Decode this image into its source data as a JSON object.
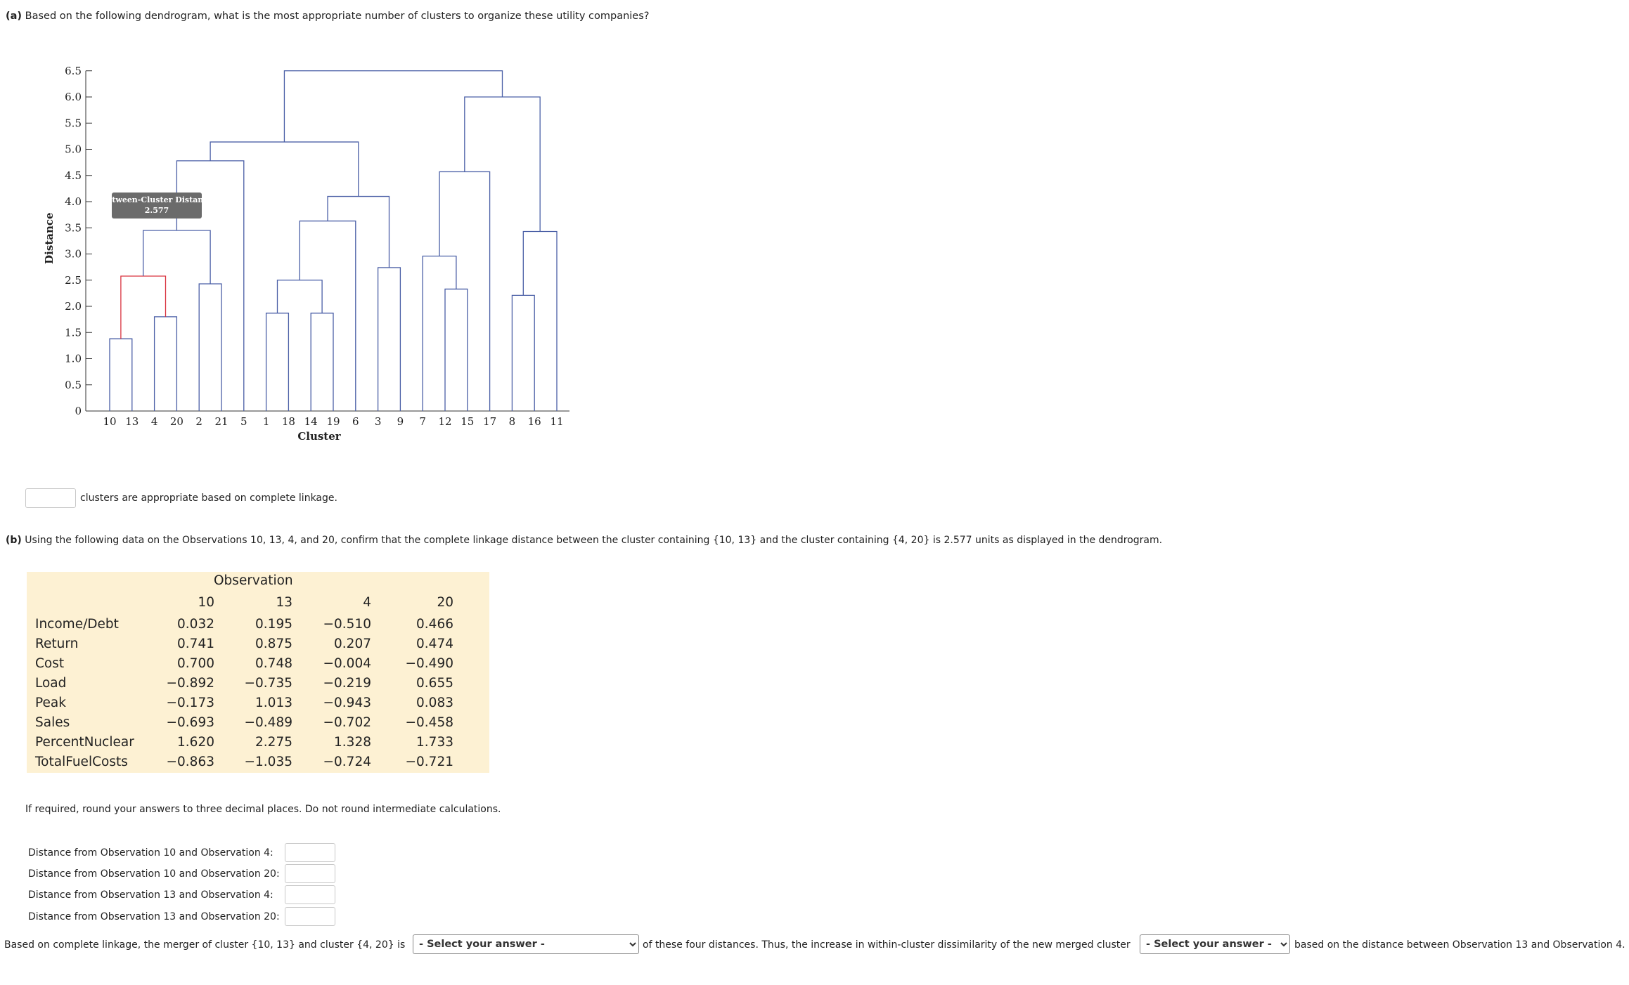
{
  "part_a": {
    "label": "(a)",
    "question": "Based on the following dendrogram, what is the most appropriate number of clusters to organize these utility companies?",
    "answer_suffix": "clusters are appropriate based on complete linkage."
  },
  "dendrogram": {
    "ylabel": "Distance",
    "xlabel": "Cluster",
    "y_ticks": [
      "0",
      "0.5",
      "1.0",
      "1.5",
      "2.0",
      "2.5",
      "3.0",
      "3.5",
      "4.0",
      "4.5",
      "5.0",
      "5.5",
      "6.0",
      "6.5"
    ],
    "leaf_order": [
      "10",
      "13",
      "4",
      "20",
      "2",
      "21",
      "5",
      "1",
      "18",
      "14",
      "19",
      "6",
      "3",
      "9",
      "7",
      "12",
      "15",
      "17",
      "8",
      "16",
      "11"
    ],
    "callout_title": "Between-Cluster Distance",
    "callout_value": "2.577",
    "line_color": "#4a5fa6",
    "highlight_color": "#d9333f"
  },
  "part_b": {
    "label": "(b)",
    "question": "Using the following data on the Observations 10, 13, 4, and 20, confirm that the complete linkage distance between the cluster containing {10, 13} and the cluster containing {4, 20} is 2.577 units as displayed in the dendrogram."
  },
  "table": {
    "group_header": "Observation",
    "columns": [
      "10",
      "13",
      "4",
      "20"
    ],
    "rows": [
      {
        "label": "Income/Debt",
        "values": [
          "0.032",
          "0.195",
          "−0.510",
          "0.466"
        ]
      },
      {
        "label": "Return",
        "values": [
          "0.741",
          "0.875",
          "0.207",
          "0.474"
        ]
      },
      {
        "label": "Cost",
        "values": [
          "0.700",
          "0.748",
          "−0.004",
          "−0.490"
        ]
      },
      {
        "label": "Load",
        "values": [
          "−0.892",
          "−0.735",
          "−0.219",
          "0.655"
        ]
      },
      {
        "label": "Peak",
        "values": [
          "−0.173",
          "1.013",
          "−0.943",
          "0.083"
        ]
      },
      {
        "label": "Sales",
        "values": [
          "−0.693",
          "−0.489",
          "−0.702",
          "−0.458"
        ]
      },
      {
        "label": "PercentNuclear",
        "values": [
          "1.620",
          "2.275",
          "1.328",
          "1.733"
        ]
      },
      {
        "label": "TotalFuelCosts",
        "values": [
          "−0.863",
          "−1.035",
          "−0.724",
          "−0.721"
        ]
      }
    ],
    "background": "#fdf1d3"
  },
  "instructions": "If required, round your answers to three decimal places. Do not round intermediate calculations.",
  "distance_rows": [
    {
      "label": "Distance from Observation 10 and Observation 4:"
    },
    {
      "label": "Distance from Observation 10 and Observation 20:"
    },
    {
      "label": "Distance from Observation 13 and Observation 4:"
    },
    {
      "label": "Distance from Observation 13 and Observation 20:"
    }
  ],
  "final_sentence": {
    "part1": "Based on complete linkage, the merger of cluster {10, 13} and cluster {4, 20} is",
    "select1_value": "- Select your answer -",
    "part2": "of these four distances. Thus, the increase in within-cluster dissimilarity of the new merged cluster",
    "select2_value": "- Select your answer -",
    "part3": "based on the distance between Observation 13 and Observation 4."
  }
}
